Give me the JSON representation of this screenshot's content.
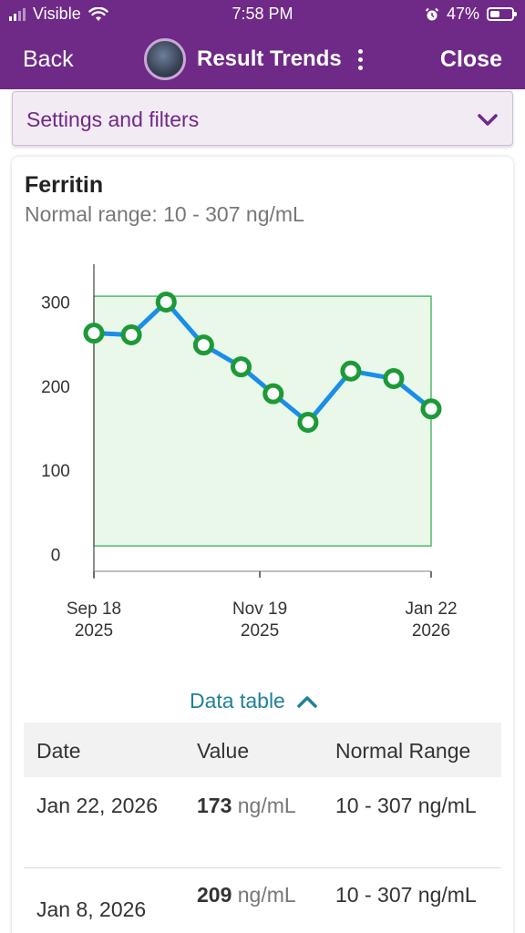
{
  "status_bar": {
    "carrier": "Visible",
    "time": "7:58 PM",
    "battery": "47%",
    "battery_level": 0.47,
    "icons": [
      "signal-bars-icon",
      "wifi-icon",
      "alarm-icon",
      "battery-icon"
    ]
  },
  "nav": {
    "back_label": "Back",
    "title": "Result Trends",
    "close_label": "Close",
    "icons": [
      "avatar-photo",
      "more-options-icon"
    ]
  },
  "settings": {
    "label": "Settings and filters",
    "icon": "chevron-down-icon"
  },
  "card": {
    "analyte": "Ferritin",
    "normal_range": "Normal range: 10 - 307 ng/mL"
  },
  "chart_data": {
    "type": "line",
    "title": "",
    "xlabel": "",
    "ylabel": "",
    "ylim": [
      -5,
      345
    ],
    "y_ticks": [
      0,
      100,
      200,
      300
    ],
    "normal_range": [
      10,
      307
    ],
    "x_ticks": [
      {
        "line1": "Sep 18",
        "line2": "2025",
        "date": "2025-09-18"
      },
      {
        "line1": "Nov 19",
        "line2": "2025",
        "date": "2025-11-19"
      },
      {
        "line1": "Jan 22",
        "line2": "2026",
        "date": "2026-01-22"
      }
    ],
    "x_range": [
      "2025-09-18",
      "2026-01-22"
    ],
    "series": [
      {
        "points": [
          {
            "date": "2025-09-18",
            "value": 263
          },
          {
            "date": "2025-10-02",
            "value": 261
          },
          {
            "date": "2025-10-15",
            "value": 300
          },
          {
            "date": "2025-10-29",
            "value": 249
          },
          {
            "date": "2025-11-12",
            "value": 223
          },
          {
            "date": "2025-11-24",
            "value": 191
          },
          {
            "date": "2025-12-07",
            "value": 157
          },
          {
            "date": "2025-12-23",
            "value": 218
          },
          {
            "date": "2026-01-08",
            "value": 209
          },
          {
            "date": "2026-01-22",
            "value": 173
          }
        ]
      }
    ],
    "colors": {
      "line": "#1a8ee8",
      "marker": "#1d9a37",
      "normal_fill": "#e9f8e9",
      "normal_stroke": "#2fa34a"
    }
  },
  "data_table": {
    "toggle_label": "Data table",
    "toggle_icon": "chevron-up-icon",
    "headers": {
      "date": "Date",
      "value": "Value",
      "range": "Normal Range"
    },
    "rows": [
      {
        "date": "Jan 22, 2026",
        "value": "173",
        "unit": "ng/mL",
        "range": "10 - 307 ng/mL"
      },
      {
        "date": "Jan 8, 2026",
        "value": "209",
        "unit": "ng/mL",
        "range": "10 - 307 ng/mL"
      }
    ]
  }
}
